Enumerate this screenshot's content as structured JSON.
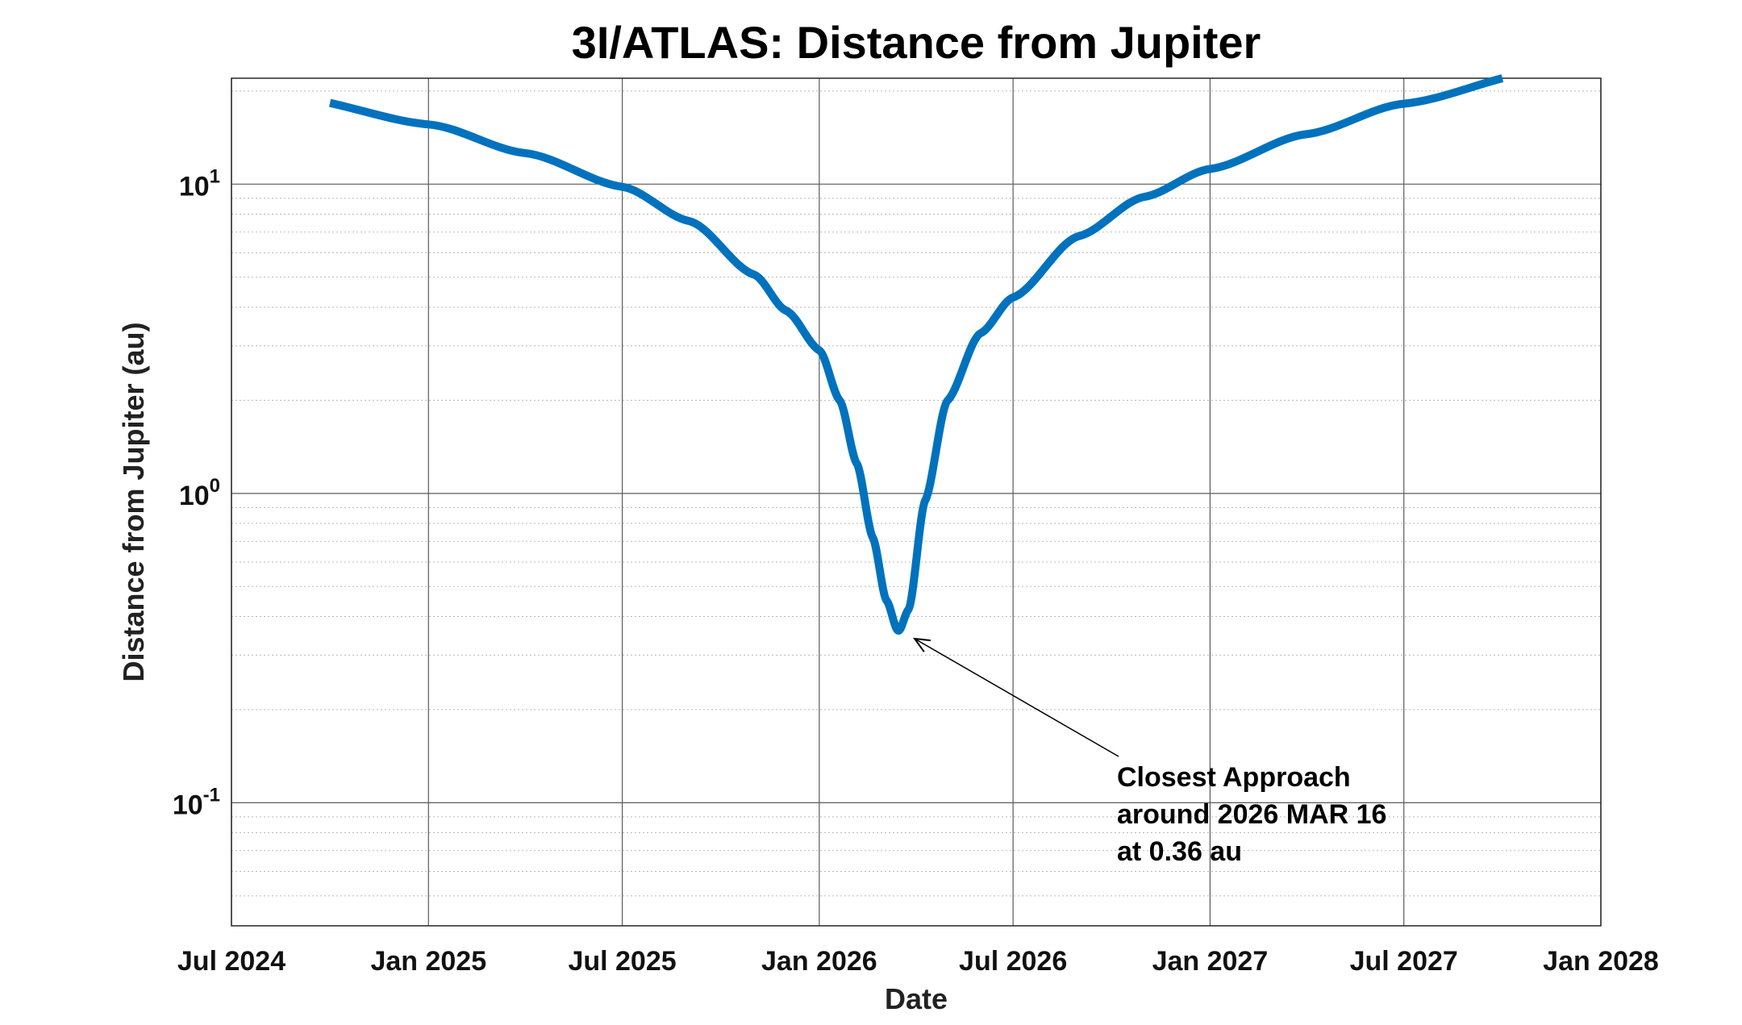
{
  "chart_data": {
    "type": "line",
    "title": "3I/ATLAS: Distance from Jupiter",
    "xlabel": "Date",
    "ylabel": "Distance from Jupiter (au)",
    "x_ticks": [
      "2024-07-01",
      "2025-01-01",
      "2025-07-01",
      "2026-01-01",
      "2026-07-01",
      "2027-01-01",
      "2027-07-01",
      "2028-01-01"
    ],
    "x_tick_labels": [
      "Jul 2024",
      "Jan 2025",
      "Jul 2025",
      "Jan 2026",
      "Jul 2026",
      "Jan 2027",
      "Jul 2027",
      "Jan 2028"
    ],
    "xlim": [
      "2024-07-01",
      "2028-01-01"
    ],
    "y_scale": "log",
    "ylim": [
      0.04,
      22
    ],
    "y_ticks": [
      0.1,
      1,
      10
    ],
    "y_tick_labels": [
      {
        "base": "10",
        "exp": "-1"
      },
      {
        "base": "10",
        "exp": "0"
      },
      {
        "base": "10",
        "exp": "1"
      }
    ],
    "grid": true,
    "line_color": "#0072bd",
    "series": [
      {
        "x": [
          "2024-10-01",
          "2025-01-01",
          "2025-04-01",
          "2025-07-01",
          "2025-09-01",
          "2025-11-01",
          "2025-12-01",
          "2026-01-01",
          "2026-01-20",
          "2026-02-05",
          "2026-02-20",
          "2026-03-05",
          "2026-03-16",
          "2026-03-25",
          "2026-04-10",
          "2026-05-01",
          "2026-06-01",
          "2026-07-01",
          "2026-09-01",
          "2026-11-01",
          "2027-01-01",
          "2027-04-01",
          "2027-07-01",
          "2027-10-01"
        ],
        "y": [
          18.3,
          15.6,
          12.6,
          9.8,
          7.6,
          5.1,
          3.9,
          2.9,
          2.0,
          1.25,
          0.72,
          0.45,
          0.36,
          0.42,
          0.95,
          2.0,
          3.3,
          4.3,
          6.8,
          9.1,
          11.2,
          14.5,
          18.2,
          22.0
        ]
      }
    ],
    "annotation": {
      "lines": [
        "Closest Approach",
        "around 2026 MAR 16",
        "at 0.36 au"
      ],
      "target": {
        "x": "2026-03-16",
        "y": 0.36
      }
    }
  }
}
